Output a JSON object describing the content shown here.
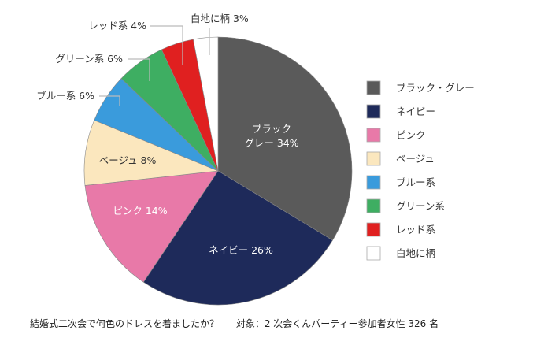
{
  "chart_data": {
    "type": "pie",
    "categories": [
      "ブラック・グレー",
      "ネイビー",
      "ピンク",
      "ベージュ",
      "ブルー系",
      "グリーン系",
      "レッド系",
      "白地に柄"
    ],
    "values": [
      34,
      26,
      14,
      8,
      6,
      6,
      4,
      3
    ],
    "colors": [
      "#5a5a5a",
      "#1e2a5a",
      "#e879a8",
      "#fbe7be",
      "#3a9bdc",
      "#3eae62",
      "#e02020",
      "#ffffff"
    ],
    "slice_labels": [
      [
        "ブラック",
        "グレー 34%"
      ],
      [
        "ネイビー 26%"
      ],
      [
        "ピンク 14%"
      ],
      [
        "ベージュ 8%"
      ],
      [
        "ブルー系 6%"
      ],
      [
        "グリーン系 6%"
      ],
      [
        "レッド系 4%"
      ],
      [
        "白地に柄 3%"
      ]
    ],
    "legend": [
      "ブラック・グレー",
      "ネイビー",
      "ピンク",
      "ベージュ",
      "ブルー系",
      "グリーン系",
      "レッド系",
      "白地に柄"
    ],
    "legend_position": "right",
    "start": "top, clockwise"
  },
  "caption": {
    "question": "結婚式二次会で何色のドレスを着ましたか？",
    "subject": "対象：2 次会くんパーティー参加者女性 326 名"
  }
}
